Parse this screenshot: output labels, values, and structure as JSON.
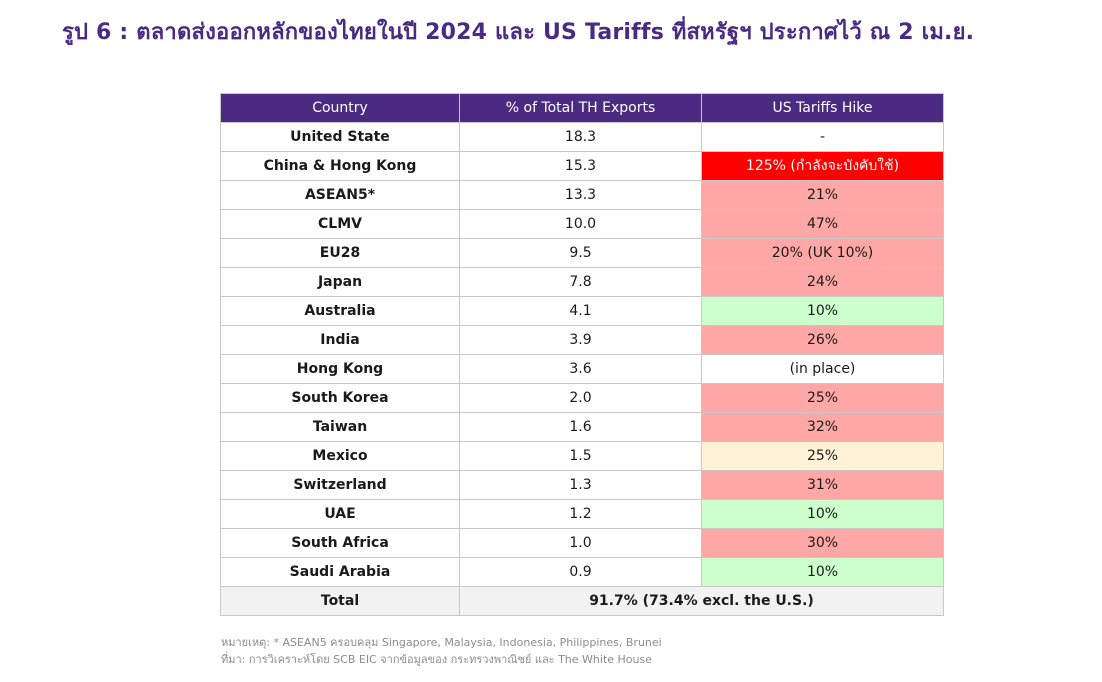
{
  "figure": {
    "title": "รูป 6 : ตลาดส่งออกหลักของไทยในปี 2024 และ US Tariffs ที่สหรัฐฯ ประกาศไว้ ณ 2 เม.ย."
  },
  "table": {
    "headers": [
      "Country",
      "% of Total TH Exports",
      "US Tariffs Hike"
    ],
    "rows": [
      {
        "country": "United State",
        "share": "18.3",
        "tariff": "-",
        "color": "#ffffff"
      },
      {
        "country": "China & Hong Kong",
        "share": "15.3",
        "tariff": "125% (กำลังจะบังคับใช้)",
        "color": "#ff0000"
      },
      {
        "country": "ASEAN5*",
        "share": "13.3",
        "tariff": "21%",
        "color": "#ffa7a7"
      },
      {
        "country": "CLMV",
        "share": "10.0",
        "tariff": "47%",
        "color": "#ffa7a7"
      },
      {
        "country": "EU28",
        "share": "9.5",
        "tariff": "20% (UK 10%)",
        "color": "#ffa7a7"
      },
      {
        "country": "Japan",
        "share": "7.8",
        "tariff": "24%",
        "color": "#ffa7a7"
      },
      {
        "country": "Australia",
        "share": "4.1",
        "tariff": "10%",
        "color": "#ccffcc"
      },
      {
        "country": "India",
        "share": "3.9",
        "tariff": "26%",
        "color": "#ffa7a7"
      },
      {
        "country": "Hong Kong",
        "share": "3.6",
        "tariff": "(in place)",
        "color": "#ffffff"
      },
      {
        "country": "South Korea",
        "share": "2.0",
        "tariff": "25%",
        "color": "#ffa7a7"
      },
      {
        "country": "Taiwan",
        "share": "1.6",
        "tariff": "32%",
        "color": "#ffa7a7"
      },
      {
        "country": "Mexico",
        "share": "1.5",
        "tariff": "25%",
        "color": "#fff2d6"
      },
      {
        "country": "Switzerland",
        "share": "1.3",
        "tariff": "31%",
        "color": "#ffa7a7"
      },
      {
        "country": "UAE",
        "share": "1.2",
        "tariff": "10%",
        "color": "#ccffcc"
      },
      {
        "country": "South Africa",
        "share": "1.0",
        "tariff": "30%",
        "color": "#ffa7a7"
      },
      {
        "country": "Saudi Arabia",
        "share": "0.9",
        "tariff": "10%",
        "color": "#ccffcc"
      }
    ],
    "total": {
      "label": "Total",
      "value": "91.7% (73.4% excl. the U.S.)"
    }
  },
  "notes": {
    "footnote": "หมายเหตุ: * ASEAN5 ครอบคลุม Singapore, Malaysia, Indonesia, Philippines, Brunei",
    "source": "ที่มา: การวิเคราะห์โดย SCB EIC จากข้อมูลของ กระทรวงพาณิชย์ และ The White House"
  }
}
